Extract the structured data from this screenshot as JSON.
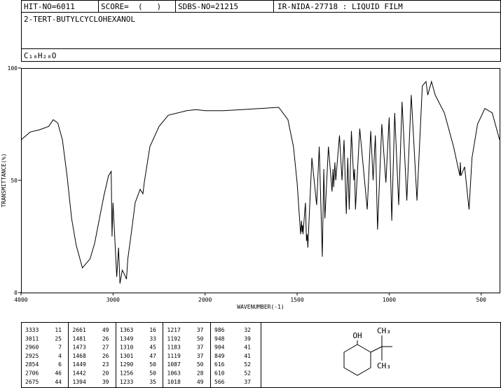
{
  "header": {
    "hit_no": "HIT-NO=6011",
    "score": "SCORE=  (   )",
    "sdbs_no": "SDBS-NO=21215",
    "ir": "IR-NIDA-27718 : LIQUID FILM",
    "name": "2-TERT-BUTYLCYCLOHEXANOL",
    "formula": "C₁₀H₂₀O"
  },
  "chart_data": {
    "type": "line",
    "x_label": "WAVENUMBER(-1)",
    "y_label": "TRANSMITTANCE(%)",
    "color": "#000000",
    "xlim": [
      4000,
      400
    ],
    "xscale_break": 2000,
    "xticks": [
      4000,
      3000,
      2000,
      1500,
      1000,
      500
    ],
    "ylim": [
      0,
      100
    ],
    "yticks": [
      0,
      50,
      100
    ],
    "x": [
      4000,
      3900,
      3800,
      3700,
      3650,
      3600,
      3550,
      3500,
      3450,
      3400,
      3333,
      3250,
      3200,
      3100,
      3050,
      3020,
      3011,
      3000,
      2960,
      2940,
      2925,
      2900,
      2875,
      2854,
      2840,
      2800,
      2760,
      2706,
      2675,
      2661,
      2600,
      2500,
      2400,
      2300,
      2200,
      2100,
      2000,
      1900,
      1800,
      1700,
      1600,
      1550,
      1520,
      1500,
      1481,
      1476,
      1473,
      1470,
      1468,
      1455,
      1449,
      1445,
      1442,
      1420,
      1394,
      1380,
      1363,
      1355,
      1349,
      1330,
      1310,
      1305,
      1301,
      1295,
      1290,
      1270,
      1256,
      1245,
      1233,
      1225,
      1217,
      1205,
      1192,
      1188,
      1183,
      1160,
      1119,
      1100,
      1087,
      1075,
      1063,
      1040,
      1018,
      1000,
      986,
      970,
      948,
      930,
      904,
      880,
      849,
      820,
      800,
      790,
      770,
      750,
      700,
      650,
      616,
      613,
      610,
      590,
      566,
      550,
      520,
      480,
      440,
      400
    ],
    "y": [
      68,
      71.5,
      72.5,
      74,
      77,
      75.5,
      68,
      52,
      33,
      21,
      11,
      15,
      22,
      43,
      52,
      54,
      25,
      40,
      7,
      20,
      4,
      10,
      8,
      6,
      15,
      27,
      40,
      46,
      44,
      49,
      65,
      74,
      79,
      80,
      81,
      81.5,
      81,
      81,
      81.5,
      82,
      82.5,
      77,
      65,
      49,
      26,
      32,
      27,
      30,
      26,
      40,
      23,
      26,
      20,
      60,
      39,
      65,
      16,
      55,
      33,
      65,
      45,
      55,
      47,
      58,
      50,
      70,
      50,
      68,
      35,
      60,
      37,
      72,
      50,
      55,
      37,
      73,
      37,
      72,
      50,
      70,
      28,
      75,
      49,
      78,
      32,
      80,
      39,
      85,
      41,
      88,
      41,
      92,
      94,
      88,
      94,
      88,
      80,
      65,
      52,
      58,
      52,
      56,
      37,
      60,
      75,
      82,
      80,
      68
    ]
  },
  "peak_table": {
    "rows": [
      [
        3333,
        11,
        2661,
        49,
        1363,
        16,
        1217,
        37,
        986,
        32
      ],
      [
        3011,
        25,
        1481,
        26,
        1349,
        33,
        1192,
        50,
        948,
        39
      ],
      [
        2960,
        7,
        1473,
        27,
        1310,
        45,
        1183,
        37,
        904,
        41
      ],
      [
        2925,
        4,
        1468,
        26,
        1301,
        47,
        1119,
        37,
        849,
        41
      ],
      [
        2854,
        6,
        1449,
        23,
        1290,
        50,
        1087,
        50,
        616,
        52
      ],
      [
        2706,
        46,
        1442,
        20,
        1256,
        50,
        1063,
        28,
        610,
        52
      ],
      [
        2675,
        44,
        1394,
        39,
        1233,
        35,
        1018,
        49,
        566,
        37
      ]
    ]
  },
  "structure": {
    "labels": [
      "OH",
      "CH₃",
      "CH₃"
    ]
  }
}
